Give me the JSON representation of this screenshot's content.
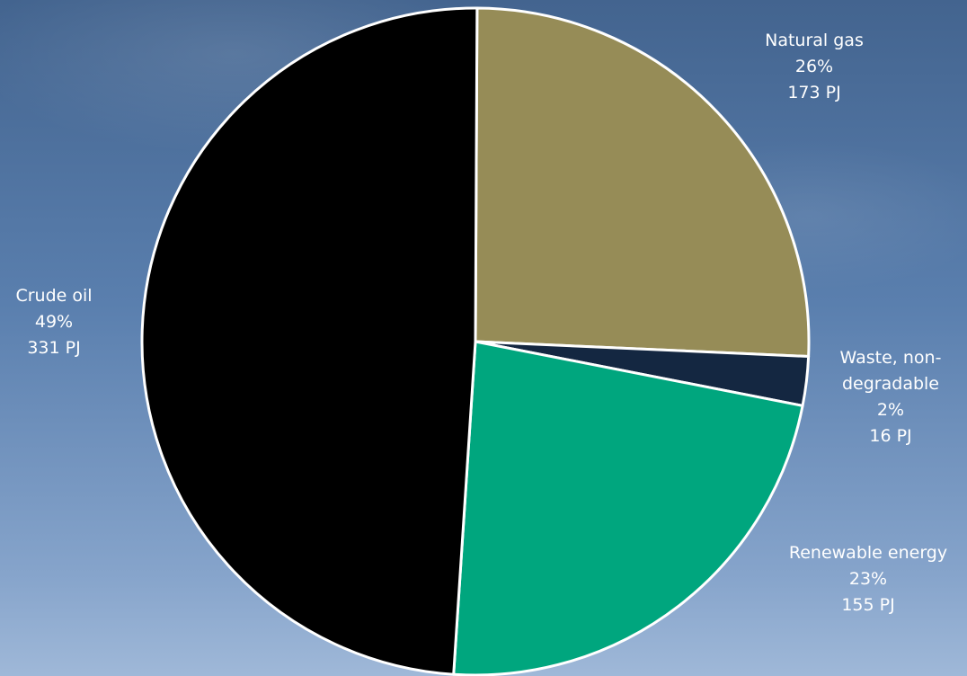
{
  "chart_data": {
    "type": "pie",
    "slices": [
      {
        "name": "Natural gas",
        "percent": 26,
        "percent_label": "26%",
        "value": 173,
        "value_label": "173 PJ",
        "color": "#968c57"
      },
      {
        "name": "Waste, non-degradable",
        "percent": 2,
        "percent_label": "2%",
        "value": 16,
        "value_label": "16 PJ",
        "color": "#142741"
      },
      {
        "name": "Renewable energy",
        "percent": 23,
        "percent_label": "23%",
        "value": 155,
        "value_label": "155 PJ",
        "color": "#00a67e"
      },
      {
        "name": "Crude oil",
        "percent": 49,
        "percent_label": "49%",
        "value": 331,
        "value_label": "331 PJ",
        "color": "#000000"
      }
    ],
    "start_direction": "12 o'clock",
    "direction": "clockwise",
    "slice_outline_color": "#ffffff",
    "legend": "none",
    "label_texts": {
      "natural_gas": "Natural gas",
      "waste_line1": "Waste, non-",
      "waste_line2": "degradable",
      "renewable": "Renewable energy",
      "crude_oil": "Crude oil"
    }
  }
}
